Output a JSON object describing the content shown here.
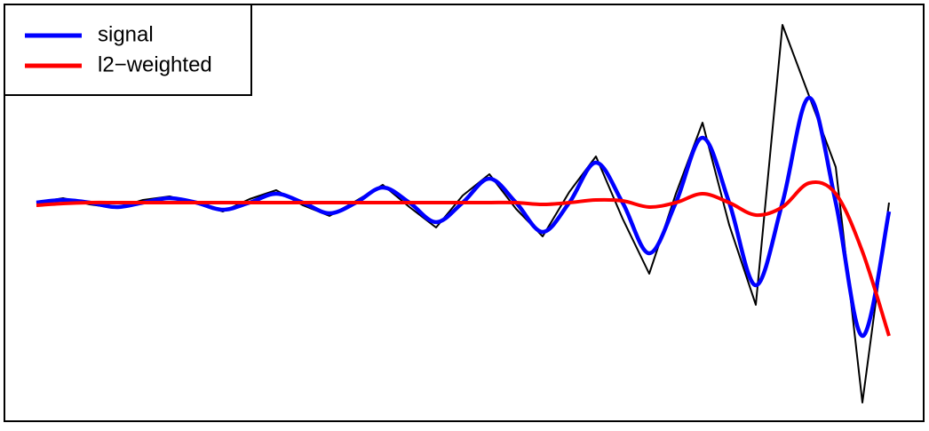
{
  "chart_data": {
    "type": "line",
    "x": [
      0,
      1,
      2,
      3,
      4,
      5,
      6,
      7,
      8,
      9,
      10,
      11,
      12,
      13,
      14,
      15,
      16,
      17,
      18,
      19,
      20,
      21,
      22,
      23,
      24,
      25,
      26,
      27,
      28,
      29,
      30,
      31,
      32
    ],
    "xlim": [
      -1.2,
      33.3
    ],
    "ylim": [
      -246,
      223
    ],
    "series": [
      {
        "color": "#000000",
        "values": [
          0,
          5,
          -2,
          -6,
          3,
          7,
          -1,
          -10,
          4,
          14,
          -3,
          -15,
          2,
          20,
          -5,
          -28,
          8,
          32,
          -7,
          -38,
          12,
          52,
          -18,
          -80,
          10,
          90,
          -25,
          -115,
          200,
          120,
          40,
          -225,
          0
        ]
      },
      {
        "name": "signal",
        "color": "#0000ff",
        "values": [
          0,
          3,
          0,
          -5,
          0,
          5,
          0,
          -8,
          0,
          10,
          0,
          -12,
          0,
          17,
          0,
          -22,
          0,
          27,
          0,
          -33,
          0,
          45,
          0,
          -57,
          0,
          73,
          0,
          -93,
          0,
          118,
          0,
          -150,
          -10
        ]
      },
      {
        "name": "l2−weighted",
        "color": "#ff0000",
        "values": [
          -3,
          -1,
          0,
          0,
          0,
          0,
          0,
          0,
          0,
          0,
          0,
          0,
          0,
          0,
          0,
          0,
          0,
          0,
          0,
          -2,
          0,
          3,
          2,
          -5,
          0,
          10,
          0,
          -14,
          -5,
          22,
          10,
          -55,
          -150
        ]
      }
    ],
    "legend": "top-left"
  }
}
